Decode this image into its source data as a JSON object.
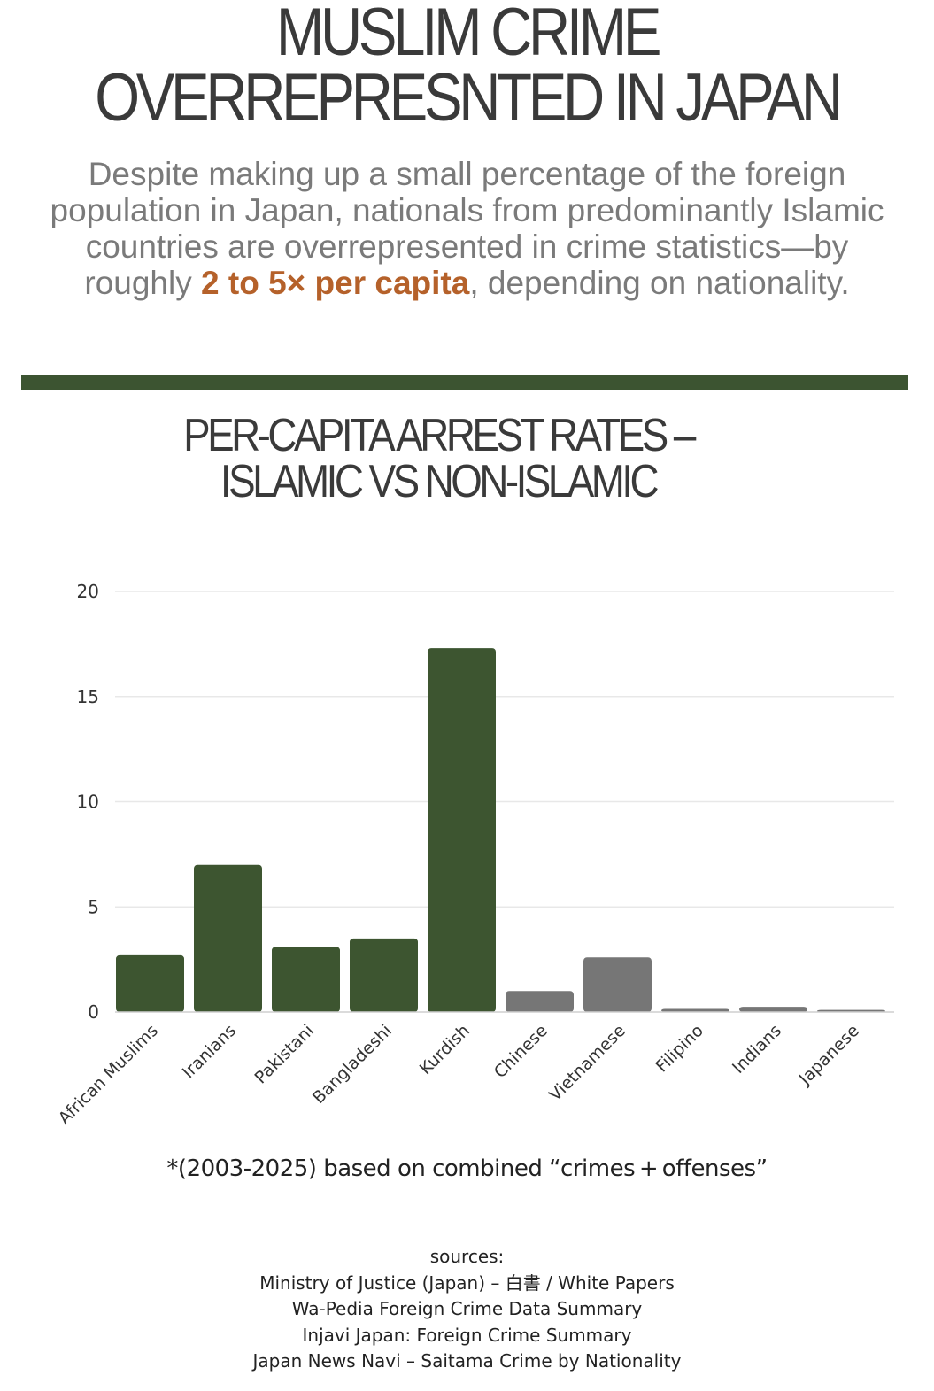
{
  "header": {
    "title_line1": "MUSLIM CRIME",
    "title_line2": "OVERREPRESNTED IN JAPAN",
    "subtitle_pre": "Despite making up a small percentage of the foreign population in Japan, nationals from predominantly Islamic countries are overrepresented in crime statistics—by roughly ",
    "subtitle_highlight": "2 to 5× per capita",
    "subtitle_post": ", depending on nationality."
  },
  "colors": {
    "islamic": "#3d5530",
    "non_islamic": "#767676",
    "highlight": "#b5612a",
    "divider": "#3c5431"
  },
  "chart_data": {
    "type": "bar",
    "title_line1": "PER-CAPITA ARREST RATES –",
    "title_line2": "ISLAMIC VS NON-ISLAMIC",
    "categories": [
      "African Muslims",
      "Iranians",
      "Pakistani",
      "Bangladeshi",
      "Kurdish",
      "Chinese",
      "Vietnamese",
      "Filipino",
      "Indians",
      "Japanese"
    ],
    "values": [
      2.7,
      7.0,
      3.1,
      3.5,
      17.3,
      1.0,
      2.6,
      0.15,
      0.25,
      0.1
    ],
    "groups": [
      "islamic",
      "islamic",
      "islamic",
      "islamic",
      "islamic",
      "non_islamic",
      "non_islamic",
      "non_islamic",
      "non_islamic",
      "non_islamic"
    ],
    "yticks": [
      0,
      5,
      10,
      15,
      20
    ],
    "ylim": [
      0,
      20
    ],
    "grid": true,
    "xlabel": "",
    "ylabel": ""
  },
  "footnote": "*(2003-2025) based on combined “crimes + offenses”",
  "sources": {
    "label": "sources:",
    "items": [
      "Ministry of Justice (Japan) – 白書 / White Papers",
      "Wa-Pedia Foreign Crime Data Summary",
      "Injavi Japan: Foreign Crime Summary",
      "Japan News Navi – Saitama Crime by Nationality"
    ]
  }
}
